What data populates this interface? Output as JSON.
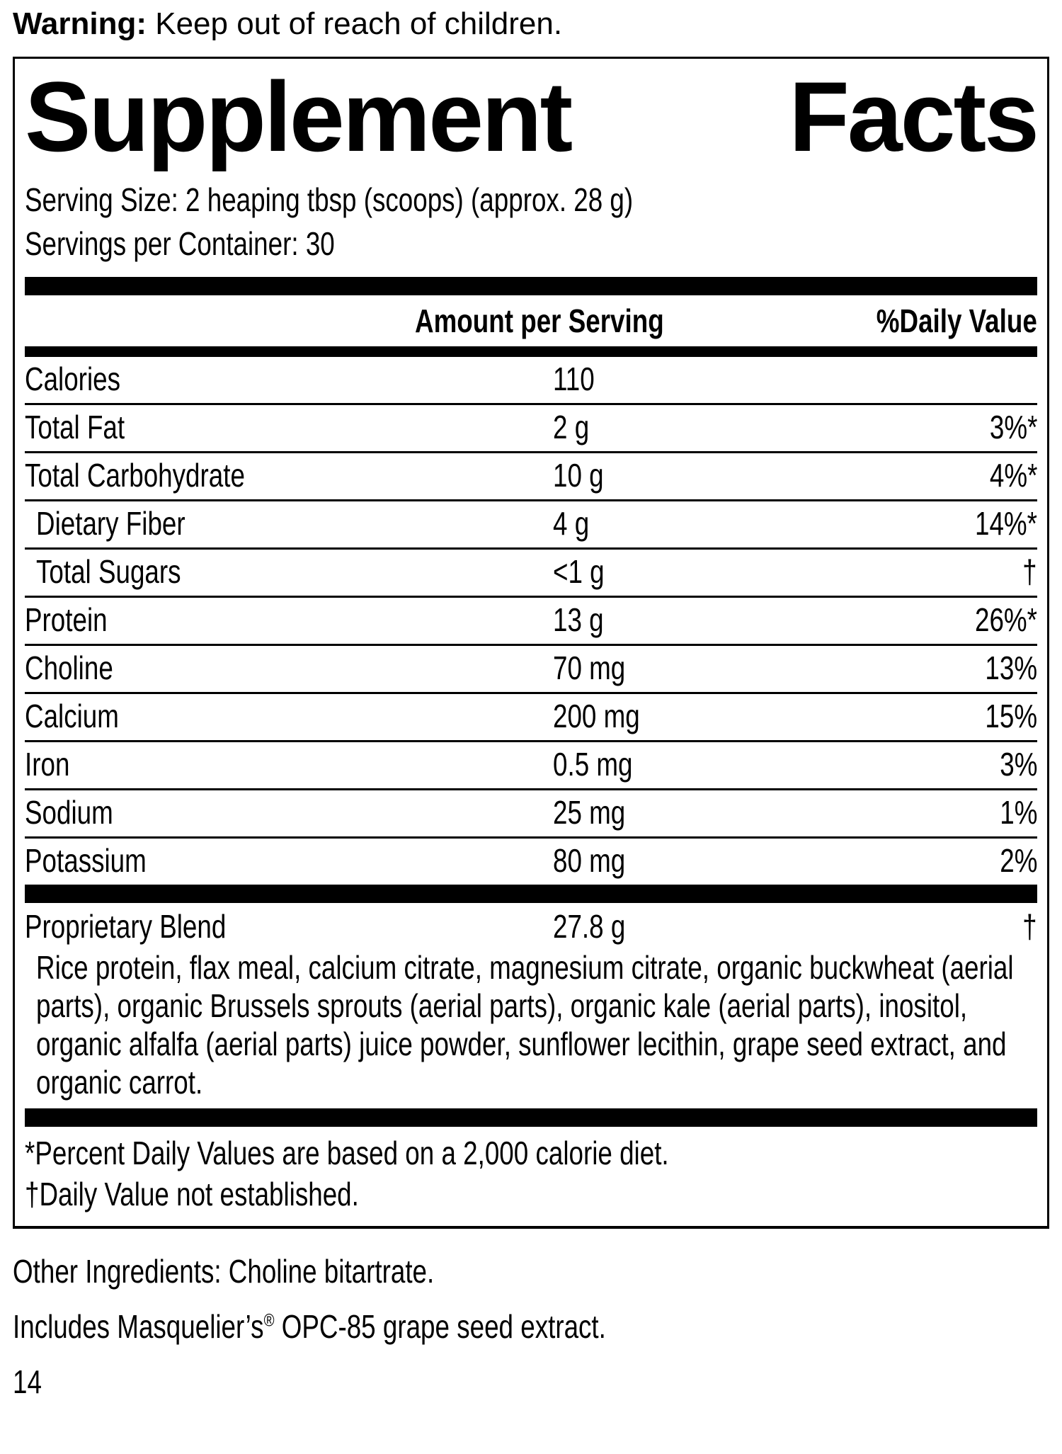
{
  "warning": {
    "label": "Warning:",
    "text": "Keep out of reach of children."
  },
  "panel": {
    "title": {
      "left": "Supplement",
      "right": "Facts"
    },
    "serving_size": "Serving Size: 2 heaping tbsp (scoops) (approx. 28 g)",
    "servings_per_container": "Servings per Container: 30",
    "header": {
      "amount": "Amount per Serving",
      "daily_value": "%Daily Value"
    },
    "rows": [
      {
        "name": "Calories",
        "amount": "110",
        "dv": ""
      },
      {
        "name": "Total Fat",
        "amount": "2 g",
        "dv": "3%*"
      },
      {
        "name": "Total Carbohydrate",
        "amount": "10 g",
        "dv": "4%*"
      },
      {
        "name": "Dietary Fiber",
        "amount": "4 g",
        "dv": "14%*"
      },
      {
        "name": "Total Sugars",
        "amount": "<1 g",
        "dv": "†"
      },
      {
        "name": "Protein",
        "amount": "13 g",
        "dv": "26%*"
      },
      {
        "name": "Choline",
        "amount": "70 mg",
        "dv": "13%"
      },
      {
        "name": "Calcium",
        "amount": "200 mg",
        "dv": "15%"
      },
      {
        "name": "Iron",
        "amount": "0.5 mg",
        "dv": "3%"
      },
      {
        "name": "Sodium",
        "amount": "25 mg",
        "dv": "1%"
      },
      {
        "name": "Potassium",
        "amount": "80 mg",
        "dv": "2%"
      }
    ],
    "blend": {
      "name": "Proprietary Blend",
      "amount": "27.8 g",
      "dv": "†"
    },
    "blend_ingredients": "Rice protein, flax meal, calcium citrate, magnesium citrate, organic buckwheat (aerial parts), organic Brussels sprouts (aerial parts), organic kale (aerial parts), inositol, organic alfalfa (aerial parts) juice powder, sunflower lecithin, grape seed extract, and organic carrot.",
    "footnote_percent": "*Percent Daily Values are based on a 2,000 calorie diet.",
    "footnote_dagger": "†Daily Value not established."
  },
  "other_ingredients": "Other Ingredients: Choline bitartrate.",
  "includes": {
    "prefix": "Includes Masquelier’s",
    "trademark": "®",
    "suffix": " OPC-85 grape seed extract."
  },
  "page_number": "14"
}
